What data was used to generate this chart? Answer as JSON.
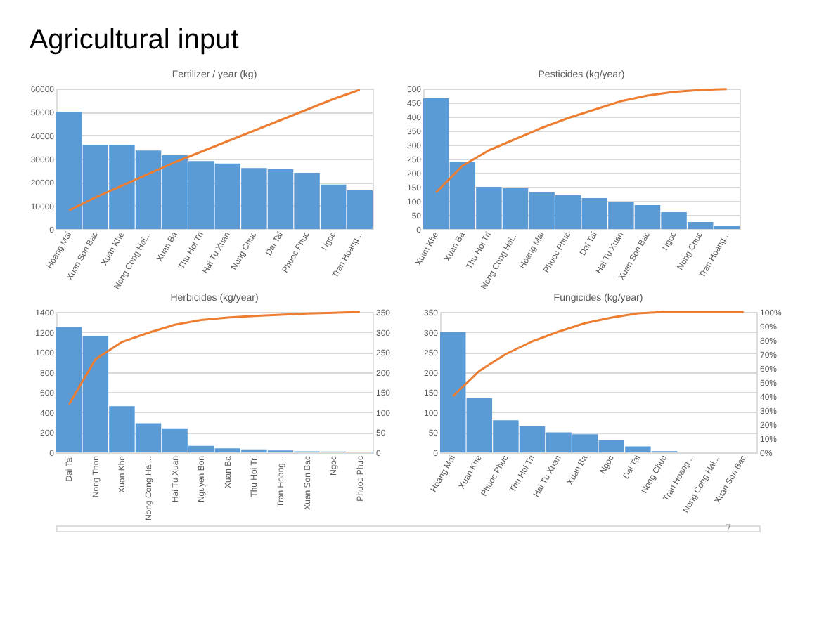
{
  "chart_data": [
    {
      "type": "bar",
      "title": "Fertilizer / year (kg)",
      "annotations": [
        "Agricultural input"
      ],
      "grid": "y",
      "categories": [
        "Hoang Mai",
        "Xuan Son Bac",
        "Xuan Khe",
        "Nong Cong Hai...",
        "Xuan Ba",
        "Thu Hoi Tri",
        "Hai Tu Xuan",
        "Nong Chuc",
        "Dai Tai",
        "Phuoc Phuc",
        "Ngoc",
        "Tran Hoang..."
      ],
      "ylim": [
        0,
        60000
      ],
      "yticks": [
        0,
        10000,
        20000,
        30000,
        40000,
        50000,
        60000
      ],
      "series": [
        {
          "color": "#5b9bd5",
          "values": [
            50000,
            36000,
            36000,
            33500,
            31500,
            29000,
            28000,
            26000,
            25500,
            24000,
            19000,
            16500
          ]
        },
        {
          "type": "line",
          "color": "#ed7d31",
          "values": [
            8000,
            13500,
            18500,
            23500,
            28500,
            33000,
            37500,
            42000,
            46500,
            51000,
            55500,
            59500
          ]
        }
      ]
    },
    {
      "type": "bar",
      "title": "Pesticides (kg/year)",
      "grid": "y",
      "categories": [
        "Xuan Khe",
        "Xuan Ba",
        "Thu Hoi Tri",
        "Nong Cong Hai...",
        "Hoang Mai",
        "Phuoc Phuc",
        "Dai Tai",
        "Hai Tu Xuan",
        "Xuan Son Bac",
        "Ngoc",
        "Nong Chuc",
        "Tran Hoang..."
      ],
      "ylim": [
        0,
        500
      ],
      "yticks": [
        0,
        50,
        100,
        150,
        200,
        250,
        300,
        350,
        400,
        450,
        500
      ],
      "series": [
        {
          "color": "#5b9bd5",
          "values": [
            465,
            240,
            150,
            145,
            130,
            120,
            110,
            95,
            85,
            60,
            25,
            10
          ]
        },
        {
          "type": "line",
          "color": "#ed7d31",
          "values": [
            130,
            225,
            280,
            320,
            360,
            395,
            425,
            455,
            475,
            488,
            495,
            498
          ]
        }
      ]
    },
    {
      "type": "bar",
      "title": "Herbicides (kg/year)",
      "grid": "y",
      "categories": [
        "Dai Tai",
        "Nong Thon",
        "Xuan Khe",
        "Nong Cong Hai...",
        "Hai Tu Xuan",
        "Nguyen Bon",
        "Xuan Ba",
        "Thu Hoi Tri",
        "Tran Hoang...",
        "Xuan Son Bac",
        "Ngoc",
        "Phuoc Phuc"
      ],
      "ylim": [
        0,
        1400
      ],
      "yticks": [
        0,
        200,
        400,
        600,
        800,
        1000,
        1200,
        1400
      ],
      "y2lim": [
        0,
        350
      ],
      "y2ticks": [
        0,
        50,
        100,
        150,
        200,
        250,
        300,
        350
      ],
      "series": [
        {
          "color": "#5b9bd5",
          "values": [
            1250,
            1160,
            460,
            290,
            240,
            65,
            40,
            30,
            20,
            10,
            8,
            5
          ]
        },
        {
          "type": "line",
          "axis": "y2",
          "color": "#ed7d31",
          "values": [
            120,
            232,
            275,
            298,
            318,
            330,
            336,
            340,
            343,
            346,
            348,
            350
          ]
        }
      ]
    },
    {
      "type": "bar",
      "title": "Fungicides (kg/year)",
      "annotations": [
        "7"
      ],
      "grid": "y",
      "categories": [
        "Hoang Mai",
        "Xuan Khe",
        "Phuoc Phuc",
        "Thu Hoi Tri",
        "Hai Tu Xuan",
        "Xuan Ba",
        "Ngoc",
        "Dai Tai",
        "Nong Chuc",
        "Tran Hoang...",
        "Nong Cong Hai...",
        "Xuan Son Bac"
      ],
      "ylim": [
        0,
        350
      ],
      "yticks": [
        0,
        50,
        100,
        150,
        200,
        250,
        300,
        350
      ],
      "y2lim": [
        0,
        100
      ],
      "y2ticks": [
        {
          "value": 0,
          "label": "0%"
        },
        {
          "value": 10,
          "label": "10%"
        },
        {
          "value": 20,
          "label": "20%"
        },
        {
          "value": 30,
          "label": "30%"
        },
        {
          "value": 40,
          "label": "40%"
        },
        {
          "value": 50,
          "label": "50%"
        },
        {
          "value": 60,
          "label": "60%"
        },
        {
          "value": 70,
          "label": "70%"
        },
        {
          "value": 80,
          "label": "80%"
        },
        {
          "value": 90,
          "label": "90%"
        },
        {
          "value": 100,
          "label": "100%"
        }
      ],
      "series": [
        {
          "color": "#5b9bd5",
          "values": [
            300,
            135,
            80,
            65,
            50,
            45,
            30,
            15,
            3,
            0,
            0,
            0
          ]
        },
        {
          "type": "line",
          "axis": "y2",
          "color": "#ed7d31",
          "values": [
            40,
            58,
            70,
            79,
            86,
            92,
            96,
            99,
            100,
            100,
            100,
            100
          ]
        }
      ]
    }
  ]
}
